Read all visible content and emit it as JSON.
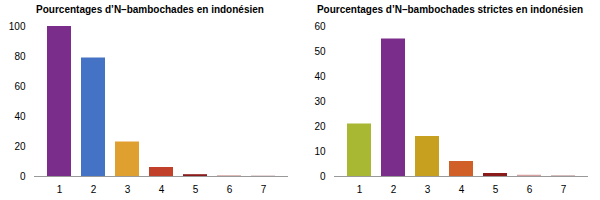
{
  "chart_data": [
    {
      "type": "bar",
      "title": "Pourcentages d’N–bambochades en indonésien",
      "categories": [
        1,
        2,
        3,
        4,
        5,
        6,
        7
      ],
      "values": [
        100,
        79,
        23,
        6,
        1.2,
        0.5,
        0.3
      ],
      "colors": [
        "#7B2D8B",
        "#4472C4",
        "#E0A030",
        "#C0402A",
        "#8B1A1A",
        "#D4A0A0",
        "#C8A8A8"
      ],
      "ylim": [
        0,
        100
      ],
      "yticks": [
        0,
        20,
        40,
        60,
        80,
        100
      ],
      "grid": false
    },
    {
      "type": "bar",
      "title": "Pourcentages d’N–bambochades strictes en indonésien",
      "categories": [
        1,
        2,
        3,
        4,
        5,
        6,
        7
      ],
      "values": [
        21,
        55,
        16,
        6,
        1.2,
        0.5,
        0.3
      ],
      "colors": [
        "#A8B832",
        "#7B2D8B",
        "#C8A020",
        "#D06028",
        "#8B1A1A",
        "#D4A0A0",
        "#C8A8A8"
      ],
      "ylim": [
        0,
        60
      ],
      "yticks": [
        0,
        10,
        20,
        30,
        40,
        50,
        60
      ],
      "grid": false
    }
  ]
}
